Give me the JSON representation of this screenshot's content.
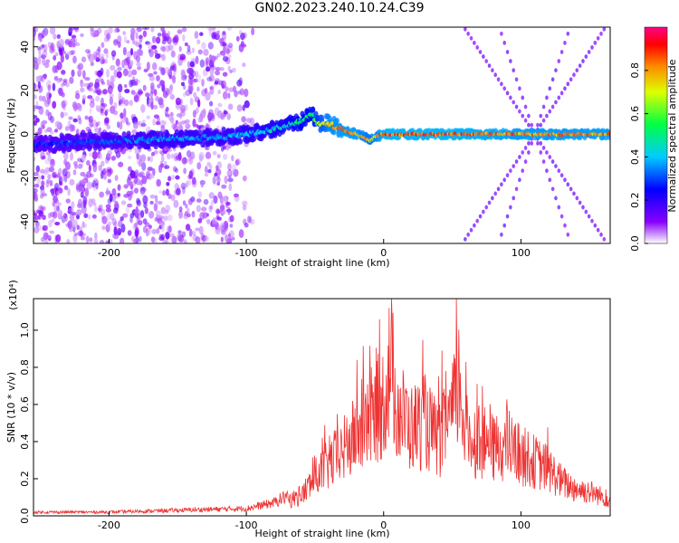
{
  "title": "GN02.2023.240.10.24.C39",
  "chart_data": [
    {
      "type": "heatmap",
      "xlabel": "Height of straight line (km)",
      "ylabel": "Frequency (Hz)",
      "xlim": [
        -255,
        165
      ],
      "ylim": [
        -50,
        49
      ],
      "xticks": [
        -200,
        -100,
        0,
        100
      ],
      "yticks": [
        -40,
        -20,
        0,
        20,
        40
      ],
      "colorbar": {
        "label": "Normalized spectral amplitude",
        "range": [
          0,
          1
        ],
        "ticks": [
          0.0,
          0.2,
          0.4,
          0.6,
          0.8
        ]
      },
      "ridge": {
        "x": [
          -255,
          -200,
          -150,
          -110,
          -90,
          -70,
          -60,
          -52,
          -48,
          -40,
          -30,
          -20,
          -15,
          -10,
          -5,
          0,
          50,
          100,
          165
        ],
        "y": [
          -5,
          -3,
          -2,
          -1,
          1,
          4,
          6,
          9,
          5,
          5,
          2,
          0,
          -1,
          -3,
          -1,
          0,
          0,
          0,
          0
        ],
        "amplitude": [
          0.3,
          0.35,
          0.4,
          0.4,
          0.45,
          0.5,
          0.55,
          0.6,
          0.7,
          0.85,
          0.9,
          0.9,
          0.85,
          0.8,
          0.85,
          0.95,
          0.95,
          0.9,
          0.9
        ]
      },
      "x_pattern_center": [
        110,
        0
      ],
      "grid": false
    },
    {
      "type": "line",
      "xlabel": "Height of straight line (km)",
      "ylabel": "SNR (10 * v/v)",
      "yscale_label": "(x10⁴)",
      "xlim": [
        -255,
        165
      ],
      "ylim": [
        0,
        1.17
      ],
      "xticks": [
        -200,
        -100,
        0,
        100
      ],
      "yticks": [
        0.0,
        0.2,
        0.4,
        0.6,
        0.8,
        1.0
      ],
      "color": "#ee3333",
      "series": [
        {
          "x": [
            -255,
            -200,
            -150,
            -100,
            -80,
            -60,
            -50,
            -40,
            -30,
            -20,
            -10,
            0,
            5,
            10,
            20,
            30,
            40,
            50,
            55,
            60,
            70,
            80,
            90,
            100,
            110,
            120,
            130,
            140,
            150,
            160,
            165
          ],
          "values": [
            0.02,
            0.02,
            0.03,
            0.04,
            0.07,
            0.15,
            0.28,
            0.38,
            0.48,
            0.6,
            0.72,
            0.85,
            1.15,
            0.8,
            0.65,
            0.7,
            0.55,
            0.75,
            1.0,
            0.6,
            0.55,
            0.5,
            0.52,
            0.45,
            0.4,
            0.35,
            0.25,
            0.2,
            0.18,
            0.14,
            0.12
          ]
        }
      ],
      "grid": false
    }
  ]
}
